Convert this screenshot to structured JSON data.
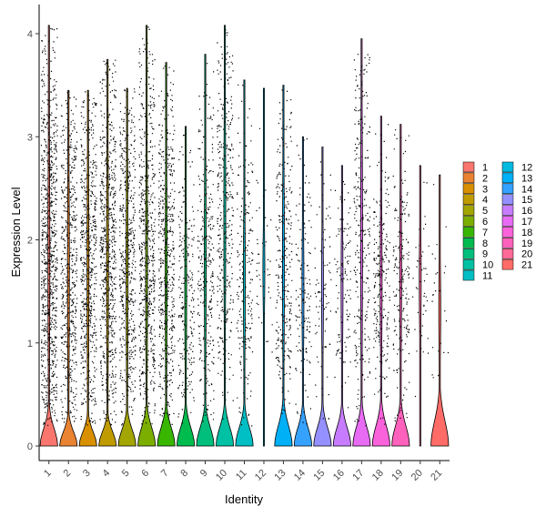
{
  "chart_data": {
    "type": "violin",
    "xlabel": "Identity",
    "ylabel": "Expression Level",
    "ylim": [
      -0.2,
      4.2
    ],
    "yticks": [
      0,
      1,
      2,
      3,
      4
    ],
    "grid": false,
    "legend_position": "right",
    "categories": [
      "1",
      "2",
      "3",
      "4",
      "5",
      "6",
      "7",
      "8",
      "9",
      "10",
      "11",
      "12",
      "13",
      "14",
      "15",
      "16",
      "17",
      "18",
      "19",
      "20",
      "21"
    ],
    "colors": [
      "#F8766D",
      "#EA8331",
      "#D89000",
      "#C09B00",
      "#A3A500",
      "#7CAE00",
      "#39B600",
      "#00BB4E",
      "#00BF7D",
      "#00C1A3",
      "#00BFC4",
      "#00BAE0",
      "#00B0F6",
      "#35A2FF",
      "#9590FF",
      "#C77CFF",
      "#E76BF3",
      "#FA62DB",
      "#FF62BC",
      "#FF6A98",
      "#FF6C67"
    ],
    "series_max": [
      4.08,
      3.45,
      3.45,
      3.75,
      3.47,
      4.08,
      3.72,
      3.1,
      3.8,
      4.08,
      3.55,
      3.47,
      3.5,
      3.0,
      2.9,
      2.72,
      3.95,
      3.2,
      3.12,
      2.72,
      2.63
    ],
    "series_bulk_top": [
      3.2,
      3.0,
      3.0,
      3.1,
      2.9,
      3.0,
      2.85,
      2.4,
      2.95,
      3.5,
      2.45,
      2.2,
      2.9,
      2.3,
      2.2,
      2.3,
      3.5,
      2.5,
      2.65,
      2.2,
      1.9
    ],
    "series_bulk_bottom": [
      0.4,
      0.35,
      0.4,
      0.4,
      0.45,
      0.45,
      0.5,
      0.55,
      0.6,
      0.9,
      0.7,
      1.2,
      0.65,
      0.7,
      0.8,
      0.8,
      0.6,
      0.7,
      0.7,
      1.0,
      0.75
    ],
    "series_density": [
      900,
      600,
      650,
      700,
      550,
      650,
      550,
      250,
      320,
      380,
      220,
      45,
      320,
      150,
      90,
      130,
      320,
      250,
      220,
      45,
      25
    ],
    "zero_peak": [
      0.35,
      0.28,
      0.28,
      0.28,
      0.32,
      0.36,
      0.36,
      0.36,
      0.36,
      0.36,
      0.36,
      0.0,
      0.4,
      0.36,
      0.36,
      0.36,
      0.38,
      0.4,
      0.4,
      0.0,
      0.5
    ]
  }
}
